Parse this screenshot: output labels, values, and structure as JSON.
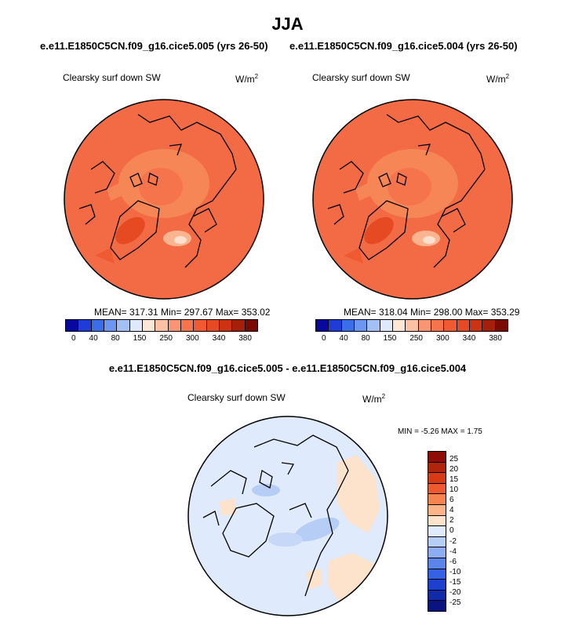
{
  "season": "JJA",
  "top_titles": {
    "left": "e.e11.E1850C5CN.f09_g16.cice5.005 (yrs 26-50)",
    "right": "e.e11.E1850C5CN.f09_g16.cice5.004 (yrs 26-50)"
  },
  "diff_title": "e.e11.E1850C5CN.f09_g16.cice5.005 - e.e11.E1850C5CN.f09_g16.cice5.004",
  "panels": [
    {
      "variable": "Clearsky surf down SW",
      "units": "W/m",
      "units_sup": "2",
      "stats": "MEAN= 317.31  Min= 297.67  Max= 353.02"
    },
    {
      "variable": "Clearsky surf down SW",
      "units": "W/m",
      "units_sup": "2",
      "stats": "MEAN= 318.04  Min= 298.00  Max= 353.29"
    },
    {
      "variable": "Clearsky surf down SW",
      "units": "W/m",
      "units_sup": "2",
      "stats": "MIN =  -5.26 MAX =   1.75"
    }
  ],
  "colorbar_abs": {
    "colors": [
      "#08089c",
      "#1f3cd6",
      "#3a6ee8",
      "#6d96f0",
      "#a4bff4",
      "#dfe9fb",
      "#fde6d6",
      "#fcc0a2",
      "#f99572",
      "#f5744c",
      "#f05a33",
      "#e64a24",
      "#cc3312",
      "#a5200b",
      "#7a0b04"
    ],
    "labels": [
      "0",
      "40",
      "80",
      "150",
      "250",
      "300",
      "340",
      "380"
    ]
  },
  "colorbar_diff": {
    "colors": [
      "#8e0d06",
      "#b2250d",
      "#d63a17",
      "#ed5a2f",
      "#f68450",
      "#fbb388",
      "#fde2cc",
      "#dfeafc",
      "#b6cdf6",
      "#8cadf1",
      "#5b85ea",
      "#3561e2",
      "#1f3fcf",
      "#102aa8",
      "#0a1480"
    ],
    "labels": [
      "25",
      "20",
      "15",
      "10",
      "6",
      "4",
      "2",
      "0",
      "-2",
      "-4",
      "-6",
      "-10",
      "-15",
      "-20",
      "-25"
    ]
  }
}
